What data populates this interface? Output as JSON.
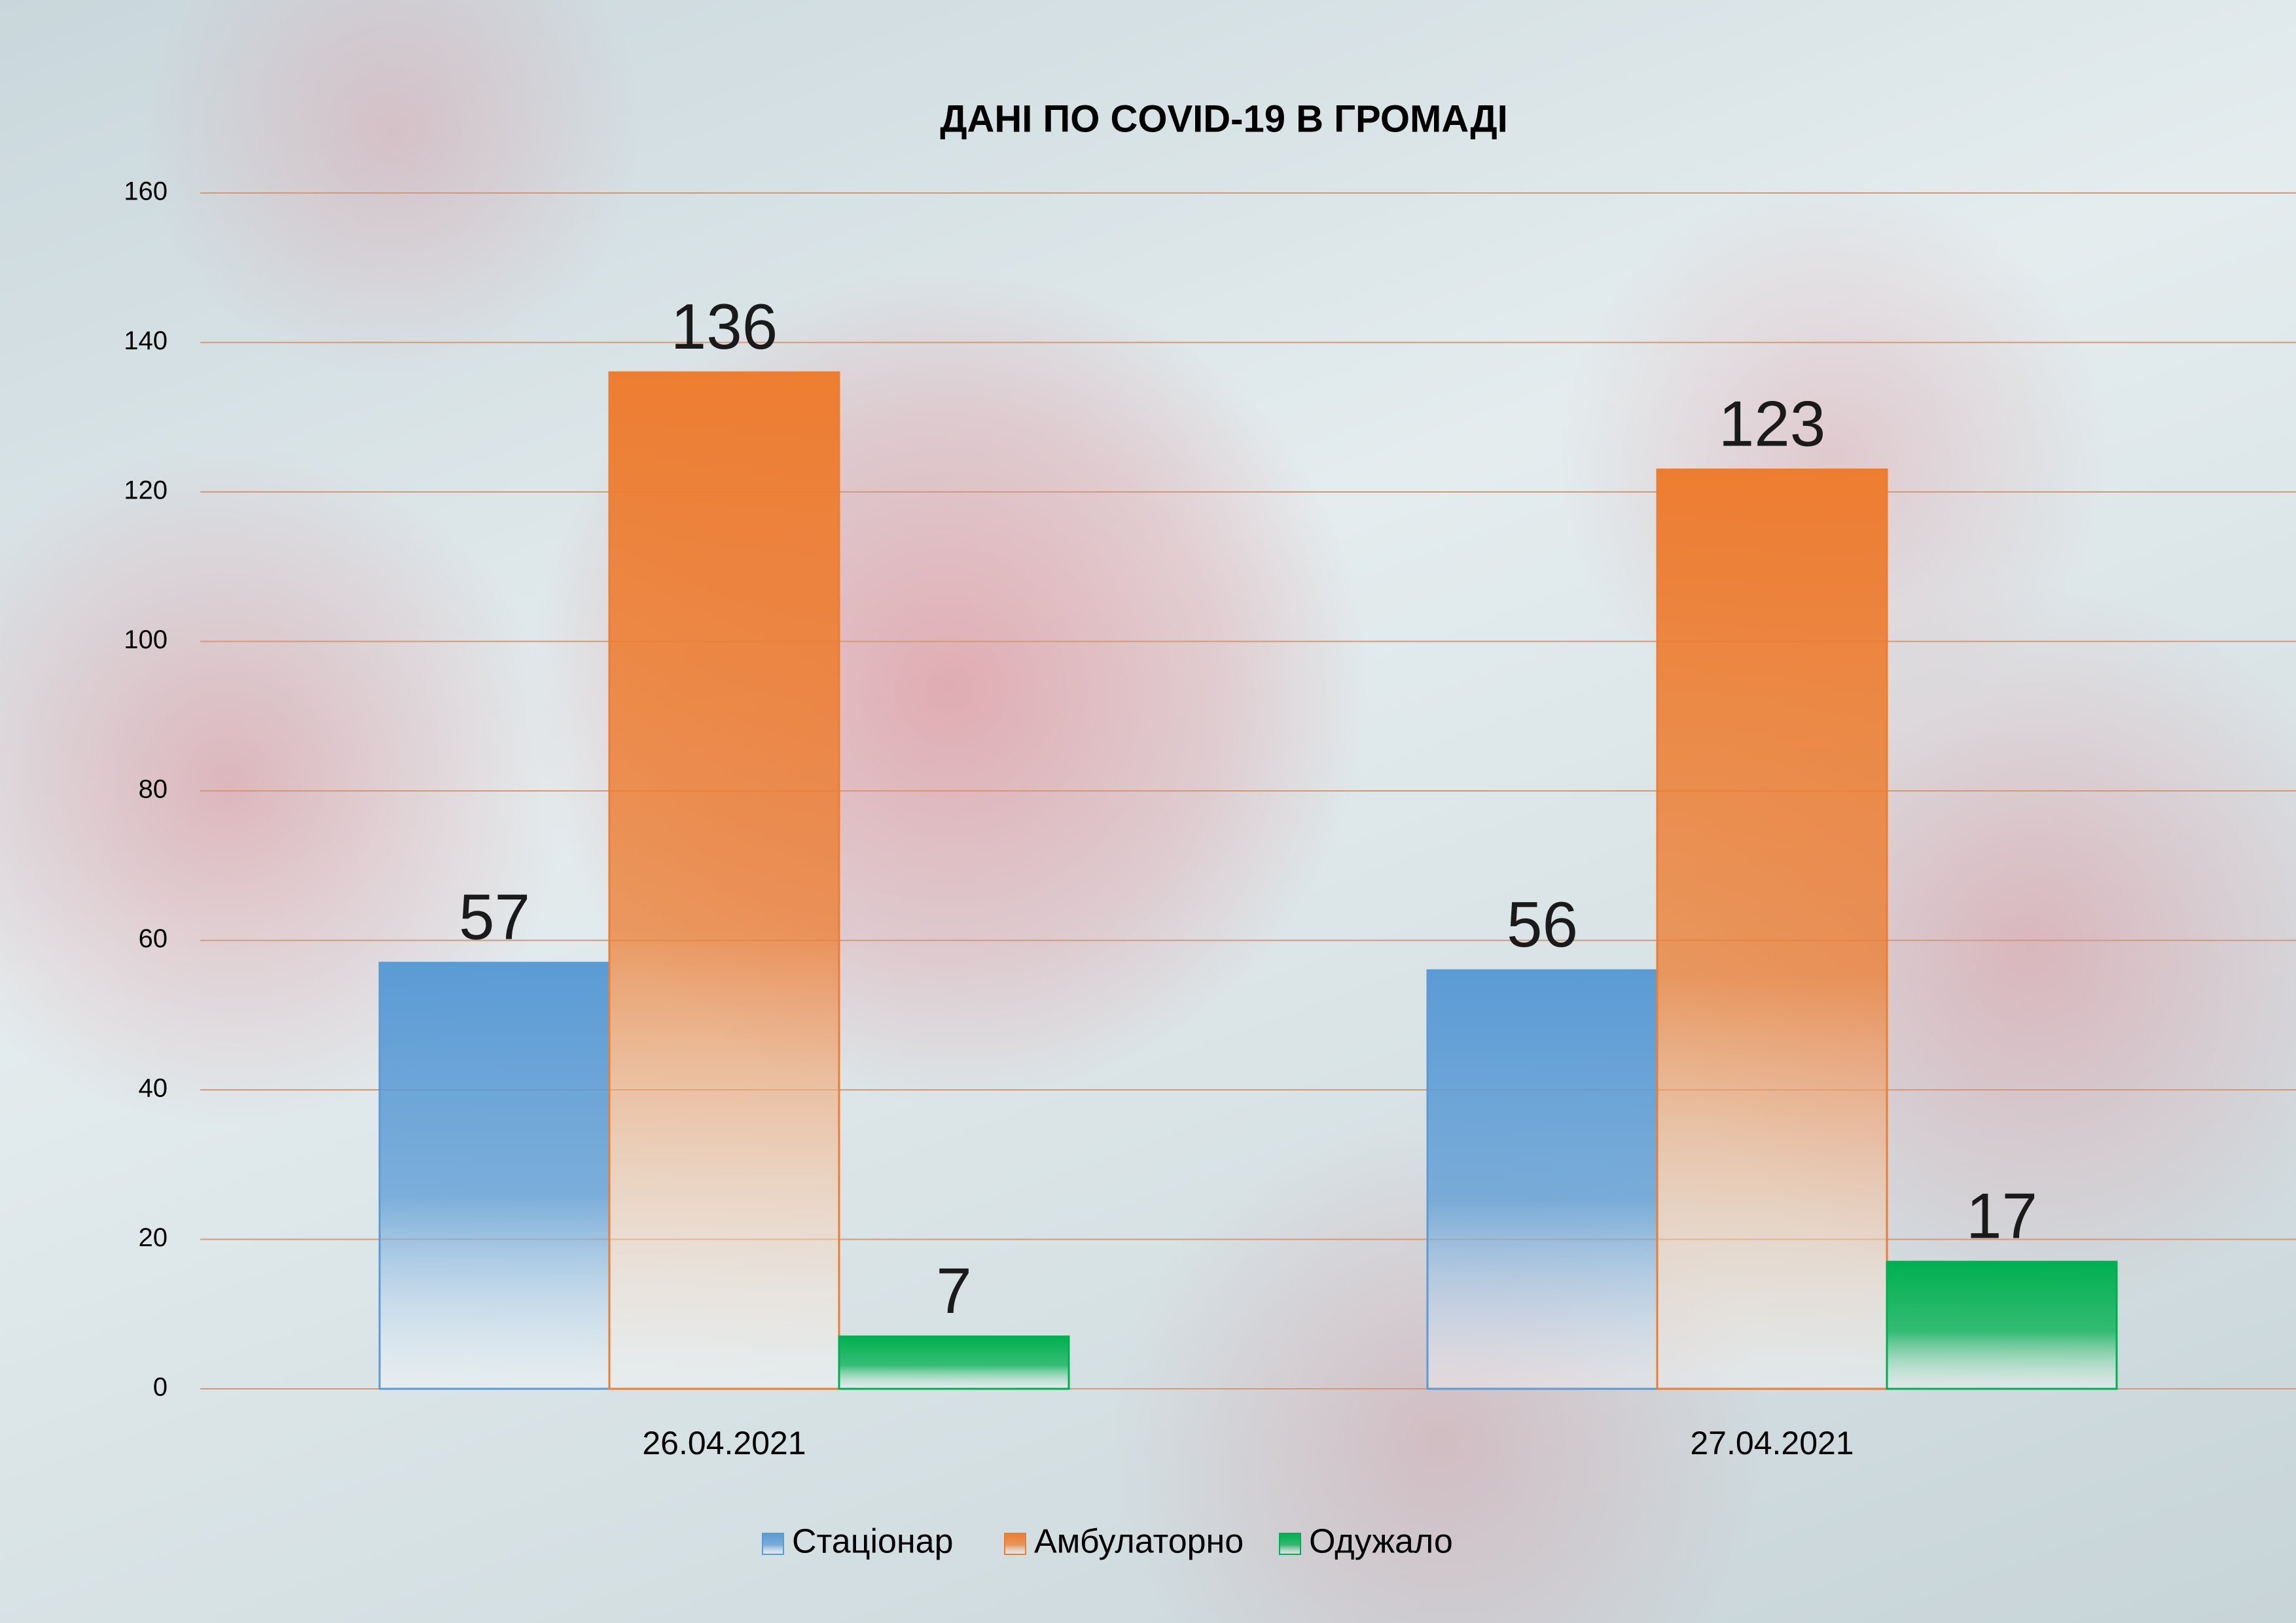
{
  "chart_data": {
    "type": "bar",
    "title": "ДАНІ ПО COVID-19 В ГРОМАДІ",
    "categories": [
      "26.04.2021",
      "27.04.2021"
    ],
    "series": [
      {
        "name": "Стаціонар",
        "color": "#5b9bd5",
        "values": [
          57,
          56
        ]
      },
      {
        "name": "Амбулаторно",
        "color": "#ed7d31",
        "values": [
          136,
          123
        ]
      },
      {
        "name": "Одужало",
        "color": "#00b050",
        "values": [
          7,
          17
        ]
      }
    ],
    "ylim": [
      0,
      160
    ],
    "yticks": [
      0,
      20,
      40,
      60,
      80,
      100,
      120,
      140,
      160
    ],
    "grid": true,
    "legend": "bottom"
  }
}
